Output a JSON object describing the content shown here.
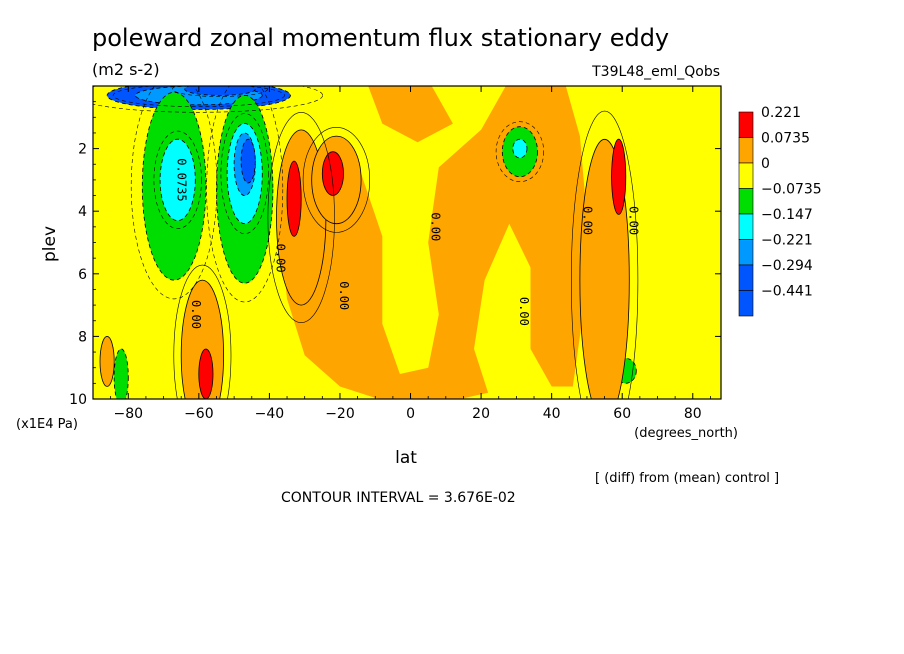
{
  "chart_data": {
    "type": "heatmap",
    "title": "poleward zonal momentum flux stationary eddy",
    "units": "(m2 s-2)",
    "run_label": "T39L48_eml_Qobs",
    "xlabel": "lat",
    "xlabel_units": "(degrees_north)",
    "ylabel": "plev",
    "ylabel_units": "(x1E4 Pa)",
    "xlim": [
      -90,
      88
    ],
    "ylim": [
      10,
      0
    ],
    "x_ticks": [
      -80,
      -60,
      -40,
      -20,
      0,
      20,
      40,
      60,
      80
    ],
    "y_ticks": [
      2,
      4,
      6,
      8,
      10
    ],
    "contour_interval_text": "CONTOUR INTERVAL = 3.676E-02",
    "note": "[ (diff) from (mean) control ]",
    "legend": {
      "placement": "right",
      "levels": [
        {
          "label": "0.221",
          "color": "#ff0000"
        },
        {
          "label": "0.0735",
          "color": "#ffa500"
        },
        {
          "label": "0",
          "color": "#ffff00"
        },
        {
          "label": "−0.0735",
          "color": "#00dd00"
        },
        {
          "label": "−0.147",
          "color": "#00ffff"
        },
        {
          "label": "−0.221",
          "color": "#0099ff"
        },
        {
          "label": "−0.294",
          "color": "#0055ff"
        },
        {
          "label": "−0.441",
          "color": ""
        }
      ]
    },
    "contour_labels": [
      {
        "text": "0.0735",
        "lat": -65,
        "plev": 3.0
      },
      {
        "text": "0.00",
        "lat": -37,
        "plev": 5.5
      },
      {
        "text": "0.00",
        "lat": -61,
        "plev": 7.3
      },
      {
        "text": "0.00",
        "lat": -19,
        "plev": 6.7
      },
      {
        "text": "0.00",
        "lat": 7,
        "plev": 4.5
      },
      {
        "text": "0.00",
        "lat": 32,
        "plev": 7.2
      },
      {
        "text": "0.00",
        "lat": 50,
        "plev": 4.3
      },
      {
        "text": "0.00",
        "lat": 63,
        "plev": 4.3
      }
    ],
    "features": [
      {
        "level": "−0.294",
        "lat": -60,
        "plev": 0.3,
        "rlat": 26,
        "rplev": 0.45
      },
      {
        "level": "−0.221",
        "lat": -60,
        "plev": 0.3,
        "rlat": 18,
        "rplev": 0.3
      },
      {
        "level": "−0.294",
        "lat": -54,
        "plev": 0.1,
        "rlat": 10,
        "rplev": 0.2
      },
      {
        "level": "−0.0735",
        "lat": -67,
        "plev": 3.2,
        "rlat": 9,
        "rplev": 3.0
      },
      {
        "level": "−0.147",
        "lat": -66,
        "plev": 3.0,
        "rlat": 5,
        "rplev": 1.3
      },
      {
        "level": "−0.0735",
        "lat": -47,
        "plev": 3.3,
        "rlat": 8,
        "rplev": 3.0
      },
      {
        "level": "−0.147",
        "lat": -47,
        "plev": 2.8,
        "rlat": 5,
        "rplev": 1.6
      },
      {
        "level": "−0.221",
        "lat": -47,
        "plev": 2.5,
        "rlat": 3,
        "rplev": 1.0
      },
      {
        "level": "−0.294",
        "lat": -46,
        "plev": 2.4,
        "rlat": 2,
        "rplev": 0.7
      },
      {
        "level": "−0.0735",
        "lat": 31,
        "plev": 2.1,
        "rlat": 5,
        "rplev": 0.8
      },
      {
        "level": "−0.147",
        "lat": 31,
        "plev": 2.0,
        "rlat": 2,
        "rplev": 0.3
      },
      {
        "level": "−0.0735",
        "lat": -82,
        "plev": 9.3,
        "rlat": 2,
        "rplev": 0.9
      },
      {
        "level": "−0.0735",
        "lat": 61,
        "plev": 9.1,
        "rlat": 3,
        "rplev": 0.4
      },
      {
        "level": "0.0735",
        "lat": -59,
        "plev": 8.6,
        "rlat": 6,
        "rplev": 2.4
      },
      {
        "level": "0.221",
        "lat": -58,
        "plev": 9.2,
        "rlat": 2,
        "rplev": 0.8
      },
      {
        "level": "0.0735",
        "lat": -31,
        "plev": 4.2,
        "rlat": 7,
        "rplev": 2.8
      },
      {
        "level": "0.221",
        "lat": -33,
        "plev": 3.6,
        "rlat": 2,
        "rplev": 1.2
      },
      {
        "level": "0.0735",
        "lat": -21,
        "plev": 3.0,
        "rlat": 7,
        "rplev": 1.4
      },
      {
        "level": "0.221",
        "lat": -22,
        "plev": 2.8,
        "rlat": 3,
        "rplev": 0.7
      },
      {
        "level": "0.0735",
        "lat": -86,
        "plev": 8.8,
        "rlat": 2,
        "rplev": 0.8
      },
      {
        "level": "0.0735",
        "lat": 55,
        "plev": 6.2,
        "rlat": 7,
        "rplev": 4.5
      },
      {
        "level": "0.221",
        "lat": 59,
        "plev": 2.9,
        "rlat": 2,
        "rplev": 1.2
      }
    ]
  }
}
